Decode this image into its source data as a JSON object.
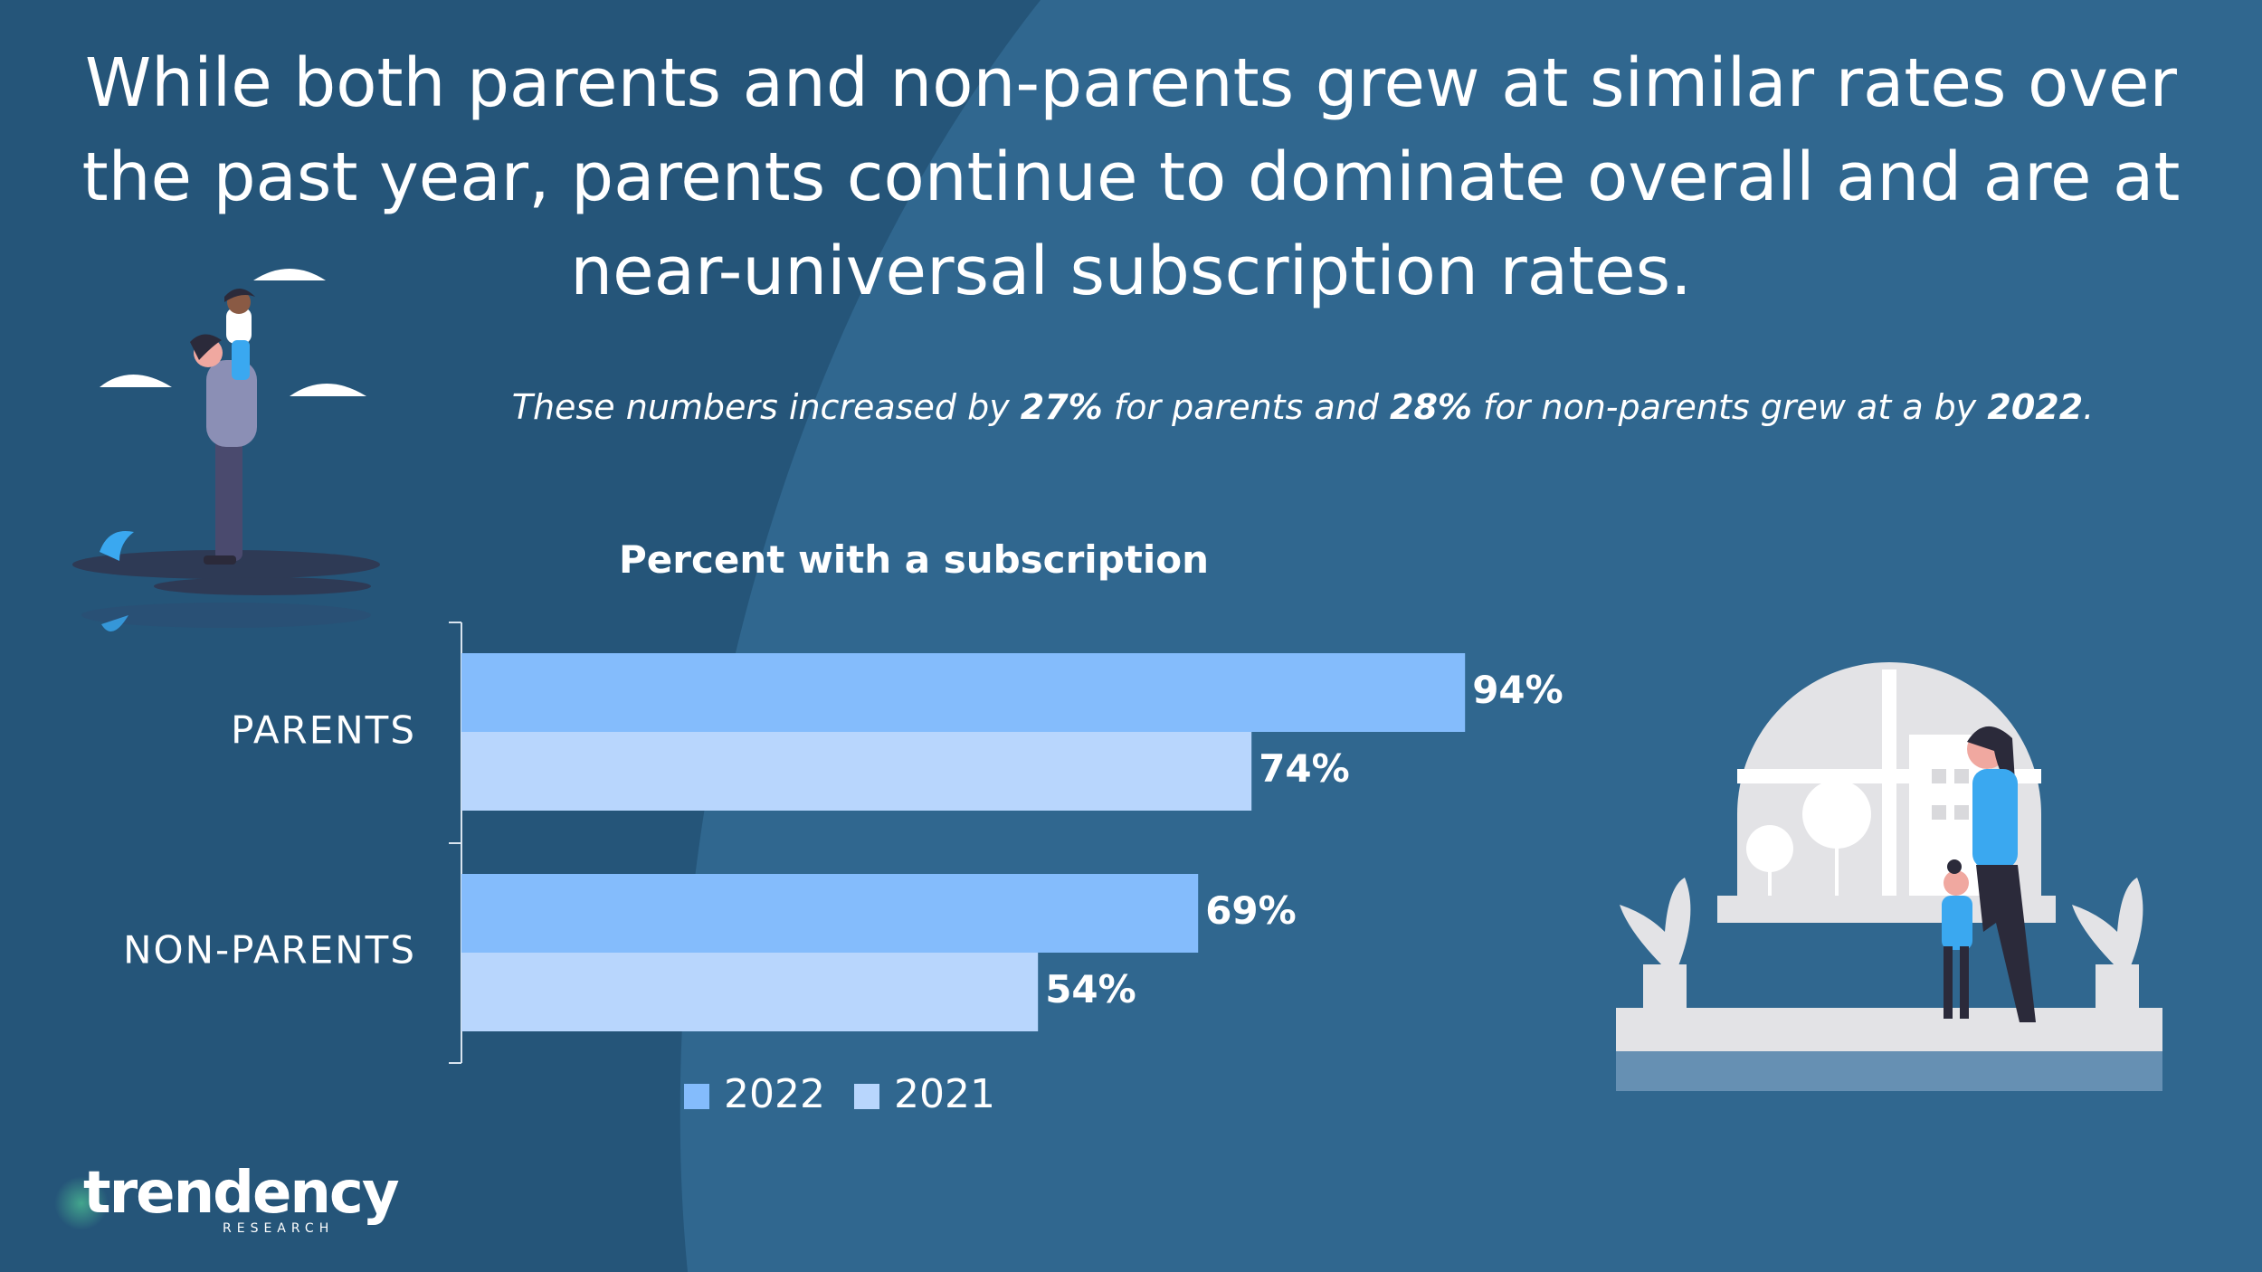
{
  "title": "While both parents and non-parents grew at similar rates over the past year, parents continue to dominate overall and are at near-universal subscription rates.",
  "subtitle": {
    "part1": "These numbers increased by ",
    "parents_growth": "27%",
    "part2": " for parents and ",
    "nonparents_growth": "28%",
    "part3": " for non-parents grew at a by ",
    "year": "2022",
    "part4": "."
  },
  "colors": {
    "background": "#2e6289",
    "background_dark": "#255579",
    "series_2022": "#84bcfc",
    "series_2021": "#b8d6fd"
  },
  "chart_data": {
    "type": "bar",
    "orientation": "horizontal",
    "title": "Percent with a subscription",
    "categories": [
      "PARENTS",
      "NON-PARENTS"
    ],
    "series": [
      {
        "name": "2022",
        "values": [
          94,
          69
        ],
        "labels": [
          "94%",
          "69%"
        ]
      },
      {
        "name": "2021",
        "values": [
          74,
          54
        ],
        "labels": [
          "74%",
          "54%"
        ]
      }
    ],
    "xlim": [
      0,
      100
    ],
    "legend_position": "bottom",
    "grid": false
  },
  "logo": {
    "name": "trendency",
    "sub": "RESEARCH"
  }
}
